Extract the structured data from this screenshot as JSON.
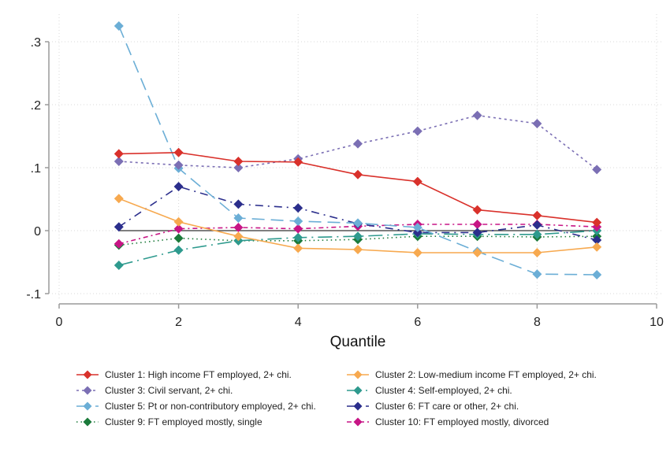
{
  "chart_data": {
    "type": "line",
    "title": "",
    "xlabel": "Quantile",
    "ylabel": "",
    "xlim": [
      0,
      10
    ],
    "ylim": [
      -0.1,
      0.3
    ],
    "xticks": [
      0,
      2,
      4,
      6,
      8,
      10
    ],
    "xtick_labels": [
      "0",
      "2",
      "4",
      "6",
      "8",
      "10"
    ],
    "yticks": [
      -0.1,
      0,
      0.1,
      0.2,
      0.3
    ],
    "ytick_labels": [
      "-.1",
      "0",
      ".1",
      ".2",
      ".3"
    ],
    "grid": true,
    "reference_line_y": 0,
    "legend_position": "bottom",
    "x": [
      1,
      2,
      3,
      4,
      5,
      6,
      7,
      8,
      9
    ],
    "series": [
      {
        "name": "Cluster 1: High income FT employed, 2+ chi.",
        "color": "#d9312b",
        "dash": "solid",
        "values": [
          0.122,
          0.124,
          0.11,
          0.109,
          0.089,
          0.078,
          0.033,
          0.024,
          0.013
        ]
      },
      {
        "name": "Cluster 2: Low-medium income FT employed, 2+ chi.",
        "color": "#f7a94f",
        "dash": "solid",
        "values": [
          0.051,
          0.014,
          -0.009,
          -0.028,
          -0.03,
          -0.035,
          -0.035,
          -0.035,
          -0.026
        ]
      },
      {
        "name": "Cluster 3: Civil servant, 2+ chi.",
        "color": "#7b6fb4",
        "dash": "dot",
        "values": [
          0.11,
          0.104,
          0.1,
          0.114,
          0.138,
          0.158,
          0.183,
          0.17,
          0.097
        ]
      },
      {
        "name": "Cluster 4: Self-employed, 2+ chi.",
        "color": "#2e9a8e",
        "dash": "longdashdot",
        "values": [
          -0.055,
          -0.031,
          -0.016,
          -0.011,
          -0.009,
          -0.005,
          -0.006,
          -0.006,
          0.0
        ]
      },
      {
        "name": "Cluster 5: Pt or non-contributory employed, 2+ chi.",
        "color": "#6baed6",
        "dash": "longdash",
        "values": [
          0.325,
          0.099,
          0.02,
          0.015,
          0.012,
          0.005,
          -0.033,
          -0.069,
          -0.07
        ]
      },
      {
        "name": "Cluster 6: FT care or other, 2+ chi.",
        "color": "#2b2e8c",
        "dash": "dashdot",
        "values": [
          0.006,
          0.07,
          0.042,
          0.036,
          0.011,
          -0.003,
          -0.003,
          0.009,
          -0.015
        ]
      },
      {
        "name": "Cluster 9: FT employed mostly, single",
        "color": "#1b7a3a",
        "dash": "sparse",
        "values": [
          -0.023,
          -0.012,
          -0.016,
          -0.016,
          -0.014,
          -0.009,
          -0.009,
          -0.01,
          -0.009
        ]
      },
      {
        "name": "Cluster 10: FT employed mostly, divorced",
        "color": "#c71585",
        "dash": "shortdashdot",
        "values": [
          -0.021,
          0.003,
          0.005,
          0.003,
          0.007,
          0.01,
          0.01,
          0.01,
          0.006
        ]
      }
    ],
    "legend_order": [
      0,
      1,
      2,
      3,
      4,
      5,
      6,
      7
    ]
  }
}
